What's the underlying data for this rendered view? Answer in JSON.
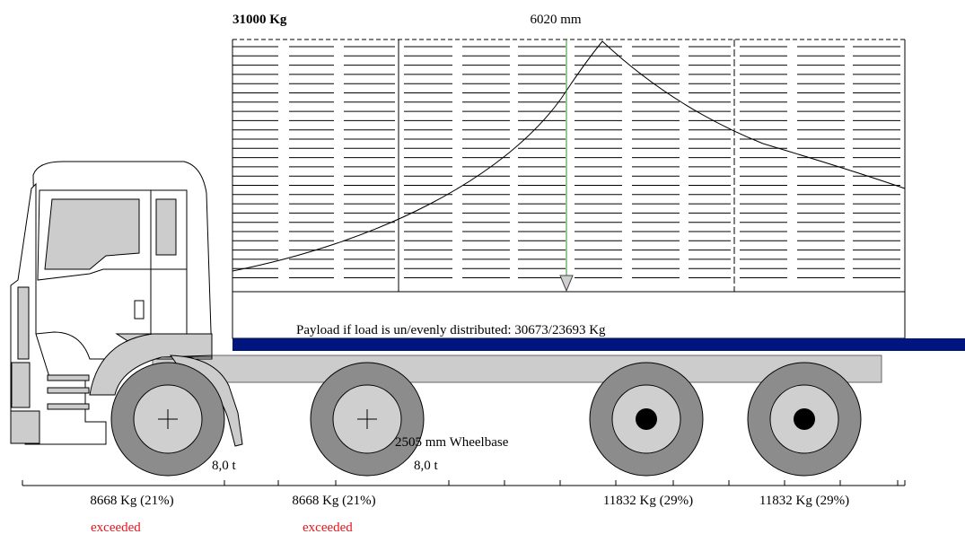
{
  "header": {
    "max_weight": "31000 Kg",
    "body_length": "6020 mm"
  },
  "payload_text": "Payload if load is un/evenly distributed: 30673/23693 Kg",
  "wheelbase_label": "2505 mm Wheelbase",
  "axles": [
    {
      "load": "8668 Kg (21%)",
      "rating": "8,0 t",
      "status": "exceeded",
      "type": "steer"
    },
    {
      "load": "8668 Kg (21%)",
      "rating": "8,0 t",
      "status": "exceeded",
      "type": "steer"
    },
    {
      "load": "11832 Kg (29%)",
      "rating": "",
      "status": "",
      "type": "drive"
    },
    {
      "load": "11832 Kg (29%)",
      "rating": "",
      "status": "",
      "type": "drive"
    }
  ],
  "colors": {
    "load_bar": "#00157e",
    "marker_line": "#2e8b2e",
    "warning_text": "#e8141c",
    "tire": "#8c8c8c",
    "hub": "#cfcfcf",
    "chassis": "#cccccc"
  },
  "icons": {
    "center_of_gravity": "down-triangle-icon",
    "steer_hub": "crosshair-icon",
    "drive_hub": "solid-dot-icon"
  }
}
